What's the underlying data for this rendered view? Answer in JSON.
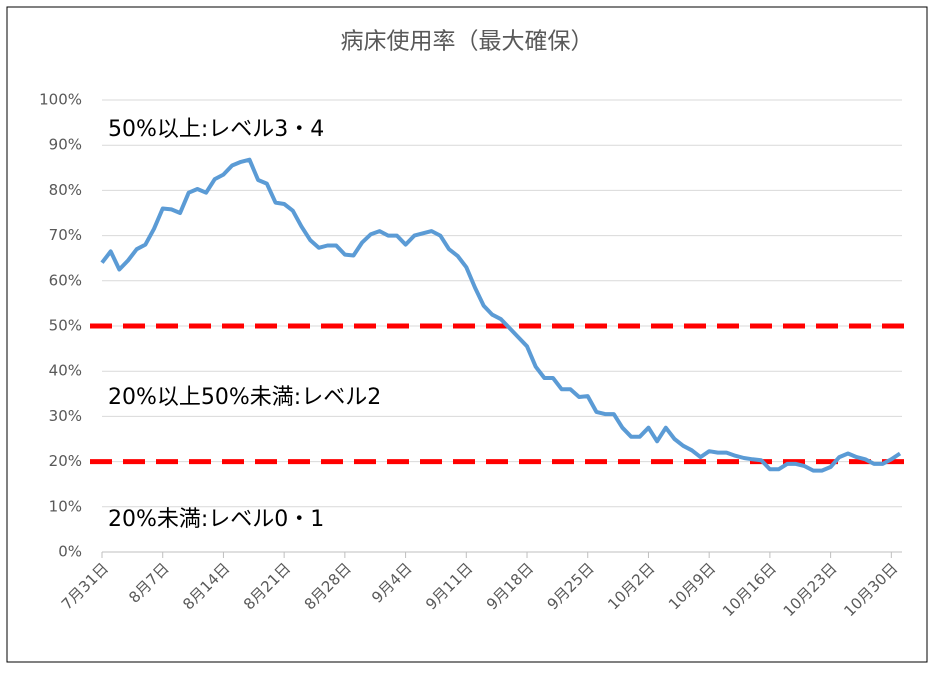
{
  "chart_data": {
    "type": "line",
    "title": "病床使用率（最大確保）",
    "categories": [
      "7月31日",
      null,
      null,
      null,
      null,
      null,
      null,
      "8月7日",
      null,
      null,
      null,
      null,
      null,
      null,
      "8月14日",
      null,
      null,
      null,
      null,
      null,
      null,
      "8月21日",
      null,
      null,
      null,
      null,
      null,
      null,
      "8月28日",
      null,
      null,
      null,
      null,
      null,
      null,
      "9月4日",
      null,
      null,
      null,
      null,
      null,
      null,
      "9月11日",
      null,
      null,
      null,
      null,
      null,
      null,
      "9月18日",
      null,
      null,
      null,
      null,
      null,
      null,
      "9月25日",
      null,
      null,
      null,
      null,
      null,
      null,
      "10月2日",
      null,
      null,
      null,
      null,
      null,
      null,
      "10月9日",
      null,
      null,
      null,
      null,
      null,
      null,
      "10月16日",
      null,
      null,
      null,
      null,
      null,
      null,
      "10月23日",
      null,
      null,
      null,
      null,
      null,
      null,
      "10月30日",
      null
    ],
    "series": [
      {
        "color": "#5b9bd5",
        "values": [
          64,
          66.5,
          62.5,
          64.5,
          67,
          68,
          71.5,
          76,
          75.8,
          75,
          79.5,
          80.3,
          79.5,
          82.5,
          83.5,
          85.5,
          86.3,
          86.8,
          82.3,
          81.5,
          77.3,
          77,
          75.5,
          72,
          69,
          67.3,
          67.8,
          67.8,
          65.8,
          65.6,
          68.5,
          70.3,
          71,
          70,
          70,
          68,
          70,
          70.5,
          71,
          70,
          67,
          65.5,
          63,
          58.5,
          54.5,
          52.5,
          51.5,
          49.5,
          47.5,
          45.5,
          41,
          38.5,
          38.5,
          36,
          36,
          34.3,
          34.5,
          31,
          30.5,
          30.5,
          27.5,
          25.5,
          25.5,
          27.5,
          24.5,
          27.5,
          25,
          23.5,
          22.5,
          21,
          22.3,
          22,
          22,
          21.3,
          20.8,
          20.5,
          20.3,
          18.3,
          18.3,
          19.5,
          19.5,
          19,
          18,
          18,
          18.8,
          21,
          21.8,
          21,
          20.5,
          19.5,
          19.5,
          20.5,
          21.8
        ]
      }
    ],
    "ylim": [
      0,
      100
    ],
    "yticks": [
      {
        "value": 0,
        "label": "0%"
      },
      {
        "value": 10,
        "label": "10%"
      },
      {
        "value": 20,
        "label": "20%"
      },
      {
        "value": 30,
        "label": "30%"
      },
      {
        "value": 40,
        "label": "40%"
      },
      {
        "value": 50,
        "label": "50%"
      },
      {
        "value": 60,
        "label": "60%"
      },
      {
        "value": 70,
        "label": "70%"
      },
      {
        "value": 80,
        "label": "80%"
      },
      {
        "value": 90,
        "label": "90%"
      },
      {
        "value": 100,
        "label": "100%"
      }
    ],
    "grid": true,
    "reference_lines": [
      {
        "value": 50,
        "color": "#ff0000"
      },
      {
        "value": 20,
        "color": "#ff0000"
      }
    ],
    "annotations": [
      "50%以上:レベル3・4",
      "20%以上50%未満:レベル2",
      "20%未満:レベル0・1"
    ]
  }
}
